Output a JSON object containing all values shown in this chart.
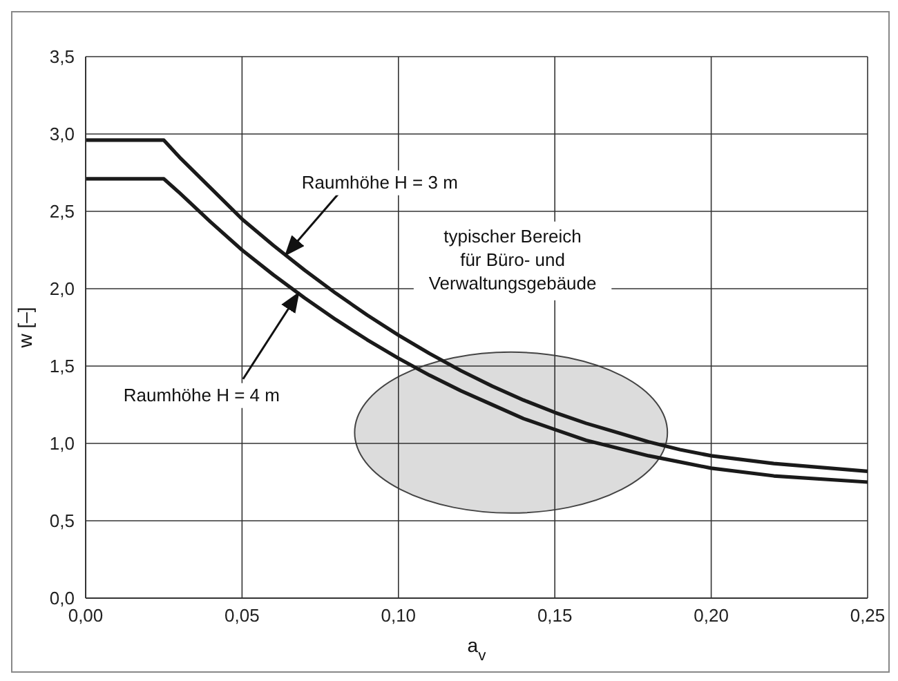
{
  "chart_data": {
    "type": "line",
    "xlabel": "a$_{v}$",
    "ylabel": "w [–]",
    "x": [
      0,
      0.025,
      0.03,
      0.04,
      0.05,
      0.06,
      0.07,
      0.08,
      0.09,
      0.1,
      0.11,
      0.12,
      0.13,
      0.14,
      0.15,
      0.16,
      0.17,
      0.18,
      0.19,
      0.2,
      0.22,
      0.25
    ],
    "series": [
      {
        "color": "#1a1a1a",
        "values": [
          2.96,
          2.96,
          2.85,
          2.65,
          2.45,
          2.28,
          2.12,
          1.97,
          1.83,
          1.7,
          1.58,
          1.47,
          1.37,
          1.28,
          1.2,
          1.13,
          1.07,
          1.01,
          0.96,
          0.92,
          0.87,
          0.82
        ]
      },
      {
        "color": "#1a1a1a",
        "values": [
          2.71,
          2.71,
          2.62,
          2.43,
          2.25,
          2.09,
          1.94,
          1.8,
          1.67,
          1.55,
          1.44,
          1.34,
          1.25,
          1.16,
          1.09,
          1.02,
          0.97,
          0.92,
          0.88,
          0.84,
          0.79,
          0.75
        ]
      }
    ],
    "xlim": [
      0,
      0.25
    ],
    "xticks": [
      {
        "value": 0,
        "label": "0,00"
      },
      {
        "value": 0.05,
        "label": "0,05"
      },
      {
        "value": 0.1,
        "label": "0,10"
      },
      {
        "value": 0.15,
        "label": "0,15"
      },
      {
        "value": 0.2,
        "label": "0,20"
      },
      {
        "value": 0.25,
        "label": "0,25"
      }
    ],
    "ylim": [
      0,
      3.5
    ],
    "yticks": [
      {
        "value": 0,
        "label": "0,0"
      },
      {
        "value": 0.5,
        "label": "0,5"
      },
      {
        "value": 1,
        "label": "1,0"
      },
      {
        "value": 1.5,
        "label": "1,5"
      },
      {
        "value": 2,
        "label": "2,0"
      },
      {
        "value": 2.5,
        "label": "2,5"
      },
      {
        "value": 3,
        "label": "3,0"
      },
      {
        "value": 3.5,
        "label": "3,5"
      }
    ],
    "grid": true,
    "marker": "none",
    "line_style": "solid",
    "annotations": [
      {
        "text": "Raumhöhe H = 3 m",
        "x": 0.064,
        "y": 2.22
      },
      {
        "text": "Raumhöhe H = 4 m",
        "x": 0.068,
        "y": 1.97
      },
      "typischer Bereich\nfür Büro- und\nVerwaltungsgebäude"
    ]
  }
}
